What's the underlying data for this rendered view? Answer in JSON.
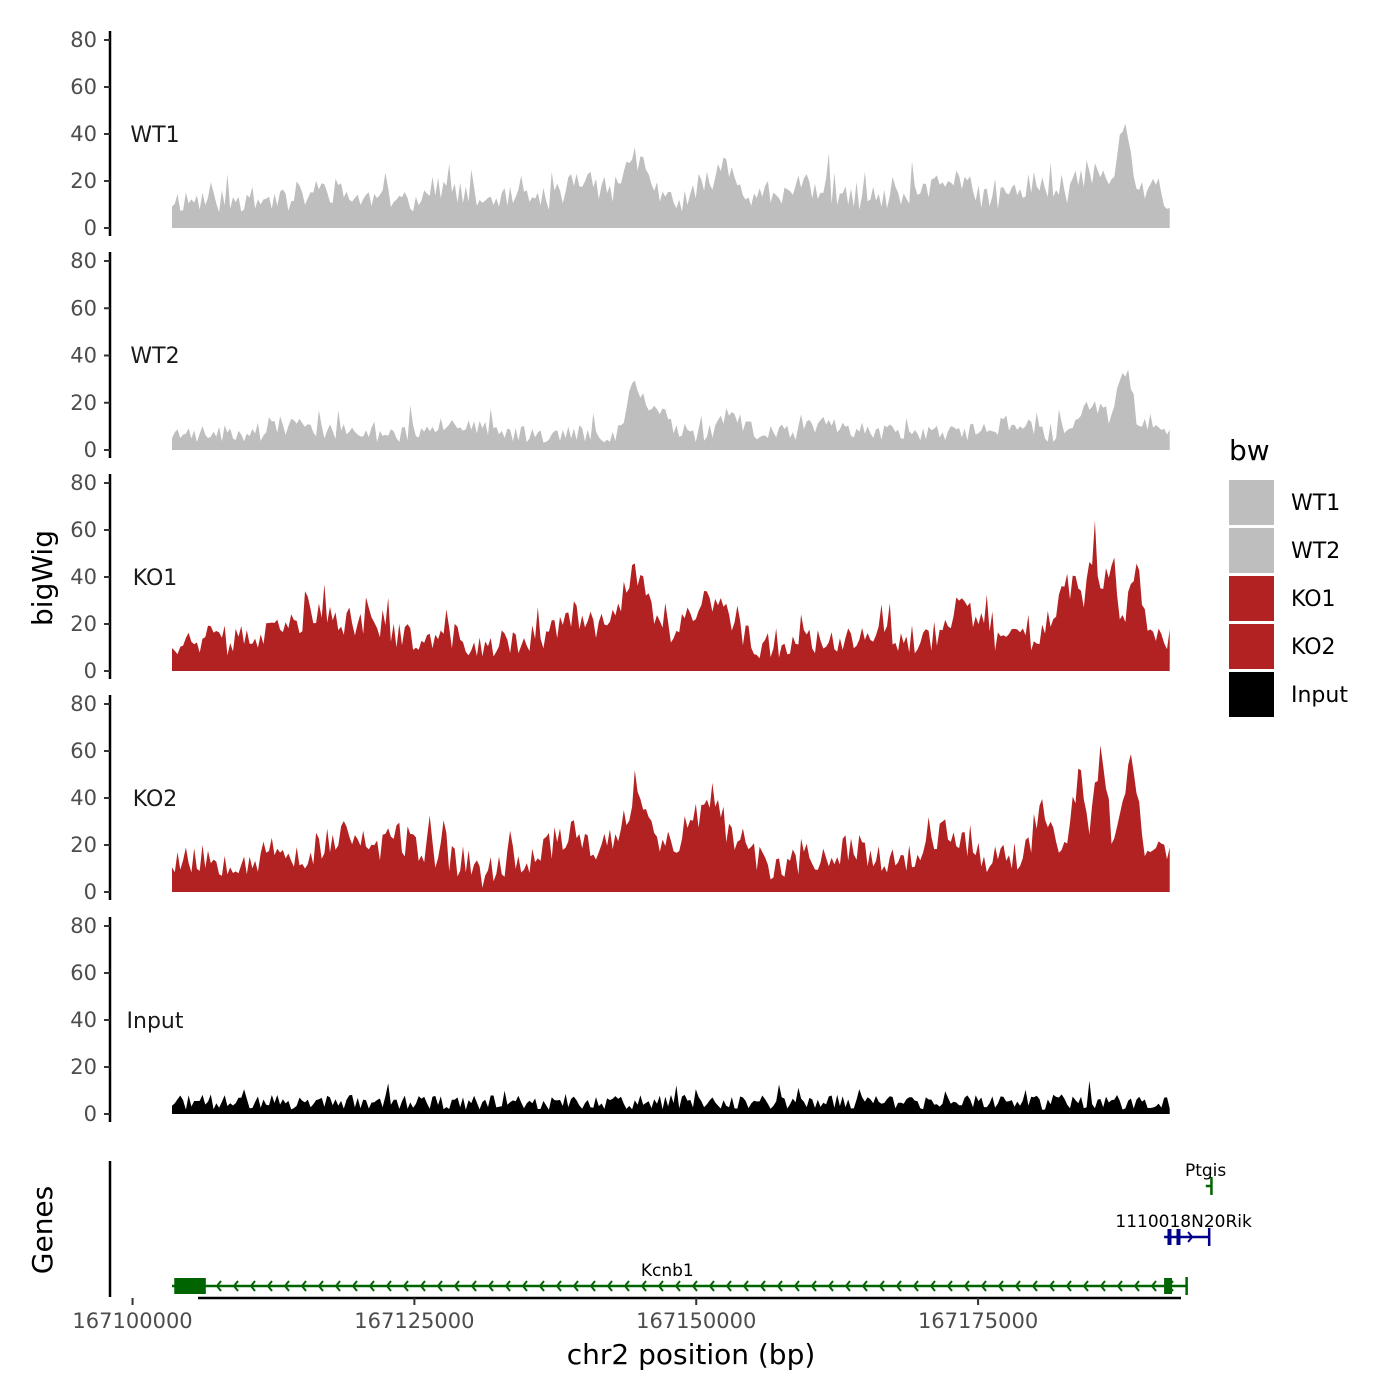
{
  "chart_data": {
    "type": "area",
    "title": "",
    "xlabel": "chr2 position (bp)",
    "ylabel_tracks": "bigWig",
    "ylabel_genes": "Genes",
    "xlim": [
      167098000,
      167193000
    ],
    "x_ticks": [
      167100000,
      167125000,
      167150000,
      167175000
    ],
    "x_tick_labels": [
      "167100000",
      "167125000",
      "167150000",
      "167175000"
    ],
    "x_data_range": [
      167103500,
      167192000
    ],
    "ylim": [
      0,
      80
    ],
    "y_ticks": [
      0,
      20,
      40,
      60,
      80
    ],
    "y_tick_labels": [
      "0",
      "20",
      "40",
      "60",
      "80"
    ],
    "grid": false,
    "legend": {
      "title": "bw",
      "position": "right",
      "entries": [
        {
          "label": "WT1",
          "color": "#bebebe"
        },
        {
          "label": "WT2",
          "color": "#bebebe"
        },
        {
          "label": "KO1",
          "color": "#b22222"
        },
        {
          "label": "KO2",
          "color": "#b22222"
        },
        {
          "label": "Input",
          "color": "#000000"
        }
      ]
    },
    "series": [
      {
        "name": "WT1",
        "color": "#bebebe",
        "base": 12,
        "noise": 7,
        "seed": 11,
        "peaks": [
          [
            167117000,
            4,
            2200
          ],
          [
            167127500,
            6,
            1600
          ],
          [
            167140000,
            9,
            2000
          ],
          [
            167144500,
            18,
            1400
          ],
          [
            167152500,
            14,
            1800
          ],
          [
            167160000,
            6,
            2500
          ],
          [
            167172500,
            9,
            2200
          ],
          [
            167180000,
            8,
            1600
          ],
          [
            167185000,
            12,
            1800
          ],
          [
            167188000,
            28,
            900
          ],
          [
            167190500,
            8,
            800
          ]
        ]
      },
      {
        "name": "WT2",
        "color": "#bebebe",
        "base": 7,
        "noise": 5,
        "seed": 23,
        "peaks": [
          [
            167115000,
            3,
            3000
          ],
          [
            167128000,
            5,
            2500
          ],
          [
            167144500,
            18,
            900
          ],
          [
            167146500,
            10,
            1500
          ],
          [
            167153000,
            9,
            1300
          ],
          [
            167162000,
            4,
            2500
          ],
          [
            167178000,
            5,
            2000
          ],
          [
            167185000,
            12,
            1600
          ],
          [
            167188000,
            26,
            900
          ],
          [
            167190500,
            6,
            800
          ]
        ]
      },
      {
        "name": "KO1",
        "color": "#b22222",
        "base": 13,
        "noise": 8,
        "seed": 37,
        "peaks": [
          [
            167116000,
            10,
            3000
          ],
          [
            167121000,
            8,
            2500
          ],
          [
            167131500,
            -4,
            1400
          ],
          [
            167139500,
            9,
            2200
          ],
          [
            167144500,
            28,
            1700
          ],
          [
            167151000,
            16,
            2500
          ],
          [
            167156000,
            -2,
            2000
          ],
          [
            167165000,
            3,
            3000
          ],
          [
            167173500,
            14,
            1800
          ],
          [
            167183000,
            22,
            1800
          ],
          [
            167185500,
            30,
            900
          ],
          [
            167187000,
            32,
            600
          ],
          [
            167189000,
            28,
            900
          ]
        ]
      },
      {
        "name": "KO2",
        "color": "#b22222",
        "base": 14,
        "noise": 9,
        "seed": 53,
        "peaks": [
          [
            167118500,
            10,
            2500
          ],
          [
            167124000,
            8,
            2500
          ],
          [
            167131000,
            -6,
            1400
          ],
          [
            167139000,
            12,
            2200
          ],
          [
            167144500,
            25,
            1700
          ],
          [
            167151000,
            21,
            2600
          ],
          [
            167156000,
            -3,
            1800
          ],
          [
            167164000,
            4,
            2500
          ],
          [
            167172500,
            11,
            2200
          ],
          [
            167181000,
            20,
            1200
          ],
          [
            167184000,
            36,
            900
          ],
          [
            167186000,
            44,
            700
          ],
          [
            167188500,
            40,
            900
          ],
          [
            167191000,
            10,
            800
          ]
        ]
      },
      {
        "name": "Input",
        "color": "#000000",
        "base": 5,
        "noise": 4,
        "seed": 71,
        "peaks": []
      }
    ],
    "genes": [
      {
        "name": "Kcnb1",
        "strand": "-",
        "color": "#006400",
        "start": 167103500,
        "end": 167193500,
        "row": 0,
        "exons": [
          [
            167103700,
            167106500
          ],
          [
            167191500,
            167192200
          ]
        ]
      },
      {
        "name": "1110018N20Rik",
        "strand": "+",
        "color": "#00008b",
        "start": 167191500,
        "end": 167195500,
        "row": 1,
        "exons": [
          [
            167191800,
            167192000
          ],
          [
            167192600,
            167192800
          ]
        ]
      },
      {
        "name": "Ptgis",
        "strand": "-",
        "color": "#006400",
        "start": 167195200,
        "end": 167195700,
        "row": 2,
        "exons": []
      }
    ]
  }
}
